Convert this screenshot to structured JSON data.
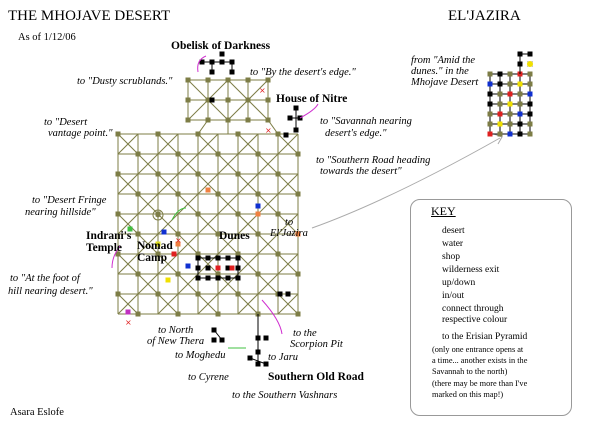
{
  "header": {
    "title": "THE MHOJAVE DESERT",
    "date": "As of 1/12/06",
    "right_title": "EL'JAZIRA"
  },
  "author": "Asara Eslofe",
  "places": {
    "obelisk": "Obelisk of Darkness",
    "house_of_nitre": "House of Nitre",
    "indranis_temple_1": "Indrani's",
    "indranis_temple_2": "Temple",
    "nomad_camp_1": "Nomad",
    "nomad_camp_2": "Camp",
    "dunes": "Dunes",
    "southern_old_road": "Southern Old Road"
  },
  "exits": {
    "dusty": "to \"Dusty scrublands.\"",
    "by_edge": "to \"By the desert's edge.\"",
    "desert_vantage_1": "to \"Desert",
    "desert_vantage_2": "vantage point.\"",
    "savannah_1": "to \"Savannah nearing",
    "savannah_2": "desert's edge.\"",
    "southern_road_1": "to \"Southern Road heading",
    "southern_road_2": "towards the desert\"",
    "fringe_1": "to \"Desert Fringe",
    "fringe_2": "nearing hillside\"",
    "eljazira_1": "to",
    "eljazira_2": "El'Jazira",
    "foot_hill_1": "to \"At the foot of",
    "foot_hill_2": "hill nearing desert.\"",
    "north_thera_1": "to North",
    "north_thera_2": "of New Thera",
    "scorpion_1": "to the",
    "scorpion_2": "Scorpion Pit",
    "moghedu": "to Moghedu",
    "jaru": "to Jaru",
    "cyrene": "to Cyrene",
    "southern_vashnars": "to the Southern Vashnars"
  },
  "eljazira_from": [
    "from \"Amid the",
    "dunes.\" in the",
    "Mhojave Desert"
  ],
  "key": {
    "title": "KEY",
    "items": [
      {
        "label": "desert",
        "color": "#7d7d46"
      },
      {
        "label": "water",
        "color": "#1030d0"
      },
      {
        "label": "shop",
        "color": "#e02020"
      },
      {
        "label": "wilderness exit",
        "color": "#f08040"
      },
      {
        "label": "up/down",
        "color": "#d030d0"
      },
      {
        "label": "in/out",
        "color": "#40c040"
      }
    ],
    "connect_1": "connect through",
    "connect_2": "respective colour",
    "pyramid_label": "to the Erisian Pyramid",
    "pyramid_note": [
      "(only one entrance opens at",
      "a time... another exists in the",
      "Savannah to the north)",
      "(there may be more than I've",
      "marked on this map!)"
    ]
  }
}
